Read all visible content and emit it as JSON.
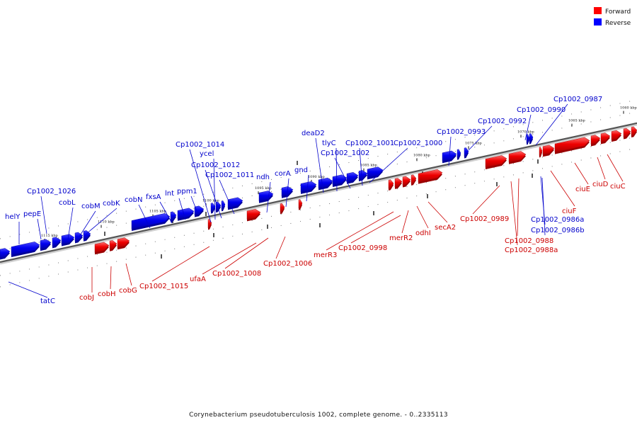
{
  "legend": {
    "forward": {
      "label": "Forward",
      "color": "#ff0000"
    },
    "reverse": {
      "label": "Reverse",
      "color": "#0000ff"
    }
  },
  "footer": "Corynebacterium pseudotuberculosis 1002, complete genome. - 0..2335113",
  "scale_ticks": [
    "1115 kbp",
    "1110 kbp",
    "1105 kbp",
    "1100 kbp",
    "1095 kbp",
    "1090 kbp",
    "1085 kbp",
    "1080 kbp",
    "1075 kbp",
    "1070 kbp",
    "1065 kbp",
    "1060 kbp"
  ],
  "reverse_genes": [
    "helY",
    "pepE",
    "Cp1002_1026",
    "cobL",
    "cobM",
    "cobK",
    "cobN",
    "fxsA",
    "lnt",
    "ppm1",
    "Cp1002_1014",
    "ycel",
    "Cp1002_1012",
    "Cp1002_1011",
    "ndh",
    "corA",
    "gnd",
    "deaD2",
    "tlyC",
    "Cp1002_1002",
    "Cp1002_1001",
    "Cp1002_1000",
    "Cp1002_0993",
    "Cp1002_0992",
    "Cp1002_0990",
    "Cp1002_0987",
    "Cp1002_0986a",
    "Cp1002_0986b",
    "tatC"
  ],
  "forward_genes": [
    "cobJ",
    "cobH",
    "cobG",
    "Cp1002_1015",
    "ufaA",
    "Cp1002_1008",
    "Cp1002_1006",
    "merR3",
    "Cp1002_0998",
    "merR2",
    "odhI",
    "secA2",
    "Cp1002_0989",
    "Cp1002_0988",
    "Cp1002_0988a",
    "ciuF",
    "ciuE",
    "ciuD",
    "ciuC"
  ]
}
